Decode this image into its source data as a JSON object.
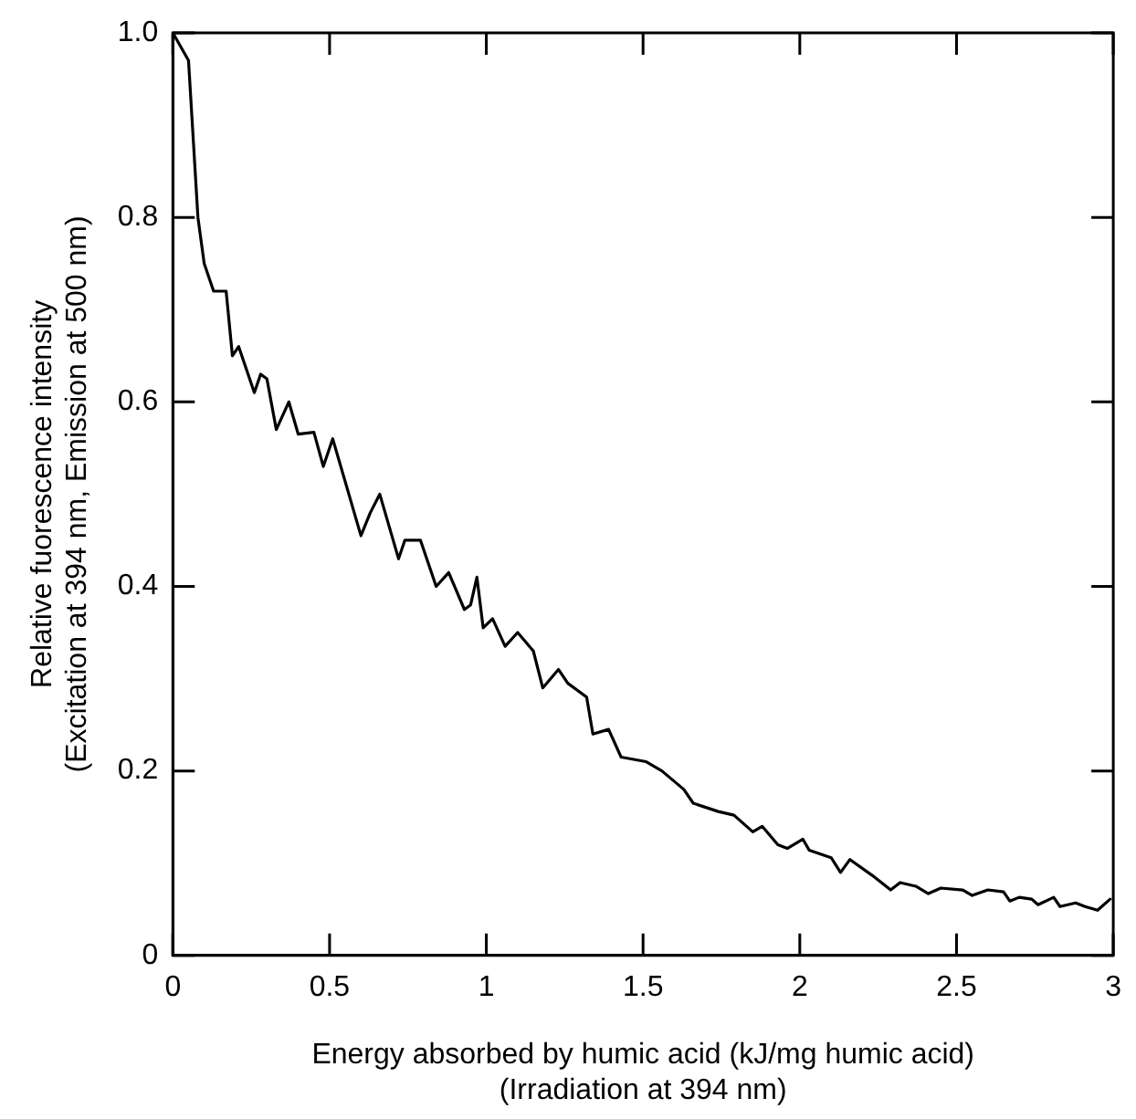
{
  "chart_data": {
    "type": "line",
    "xlabel": "Energy absorbed by humic acid (kJ/mg humic acid)\n(Irradiation at 394 nm)",
    "ylabel": "Relative fuorescence intensity\n(Excitation at 394 nm, Emission at 500 nm)",
    "xlim": [
      0,
      3
    ],
    "ylim": [
      0,
      1
    ],
    "xticks": [
      0,
      0.5,
      1,
      1.5,
      2,
      2.5,
      3
    ],
    "yticks": [
      0,
      0.2,
      0.4,
      0.6,
      0.8,
      {
        "value": 1,
        "label": "1.0"
      }
    ],
    "grid": false,
    "legend": false,
    "marker": "none",
    "line_style": "solid",
    "series": [
      {
        "color": "#000000",
        "x": [
          0,
          0.05,
          0.08,
          0.1,
          0.13,
          0.17,
          0.19,
          0.21,
          0.26,
          0.28,
          0.3,
          0.33,
          0.37,
          0.4,
          0.45,
          0.48,
          0.51,
          0.6,
          0.63,
          0.66,
          0.72,
          0.74,
          0.79,
          0.84,
          0.88,
          0.93,
          0.95,
          0.97,
          0.99,
          1.02,
          1.06,
          1.1,
          1.15,
          1.18,
          1.23,
          1.26,
          1.32,
          1.34,
          1.39,
          1.43,
          1.51,
          1.56,
          1.63,
          1.66,
          1.74,
          1.79,
          1.85,
          1.88,
          1.93,
          1.96,
          2.01,
          2.03,
          2.1,
          2.13,
          2.16,
          2.23,
          2.29,
          2.32,
          2.37,
          2.41,
          2.45,
          2.52,
          2.55,
          2.6,
          2.65,
          2.67,
          2.7,
          2.74,
          2.76,
          2.81,
          2.83,
          2.88,
          2.91,
          2.95,
          2.99
        ],
        "values": [
          1.0,
          0.97,
          0.8,
          0.75,
          0.72,
          0.72,
          0.65,
          0.66,
          0.61,
          0.63,
          0.625,
          0.57,
          0.6,
          0.565,
          0.567,
          0.53,
          0.56,
          0.455,
          0.48,
          0.5,
          0.43,
          0.45,
          0.45,
          0.4,
          0.415,
          0.375,
          0.38,
          0.41,
          0.355,
          0.365,
          0.335,
          0.35,
          0.33,
          0.29,
          0.31,
          0.295,
          0.28,
          0.24,
          0.245,
          0.215,
          0.21,
          0.2,
          0.18,
          0.165,
          0.156,
          0.152,
          0.134,
          0.14,
          0.12,
          0.116,
          0.126,
          0.114,
          0.106,
          0.09,
          0.104,
          0.087,
          0.071,
          0.079,
          0.075,
          0.067,
          0.073,
          0.071,
          0.065,
          0.071,
          0.069,
          0.059,
          0.063,
          0.061,
          0.055,
          0.063,
          0.053,
          0.057,
          0.053,
          0.049,
          0.061
        ]
      }
    ]
  }
}
